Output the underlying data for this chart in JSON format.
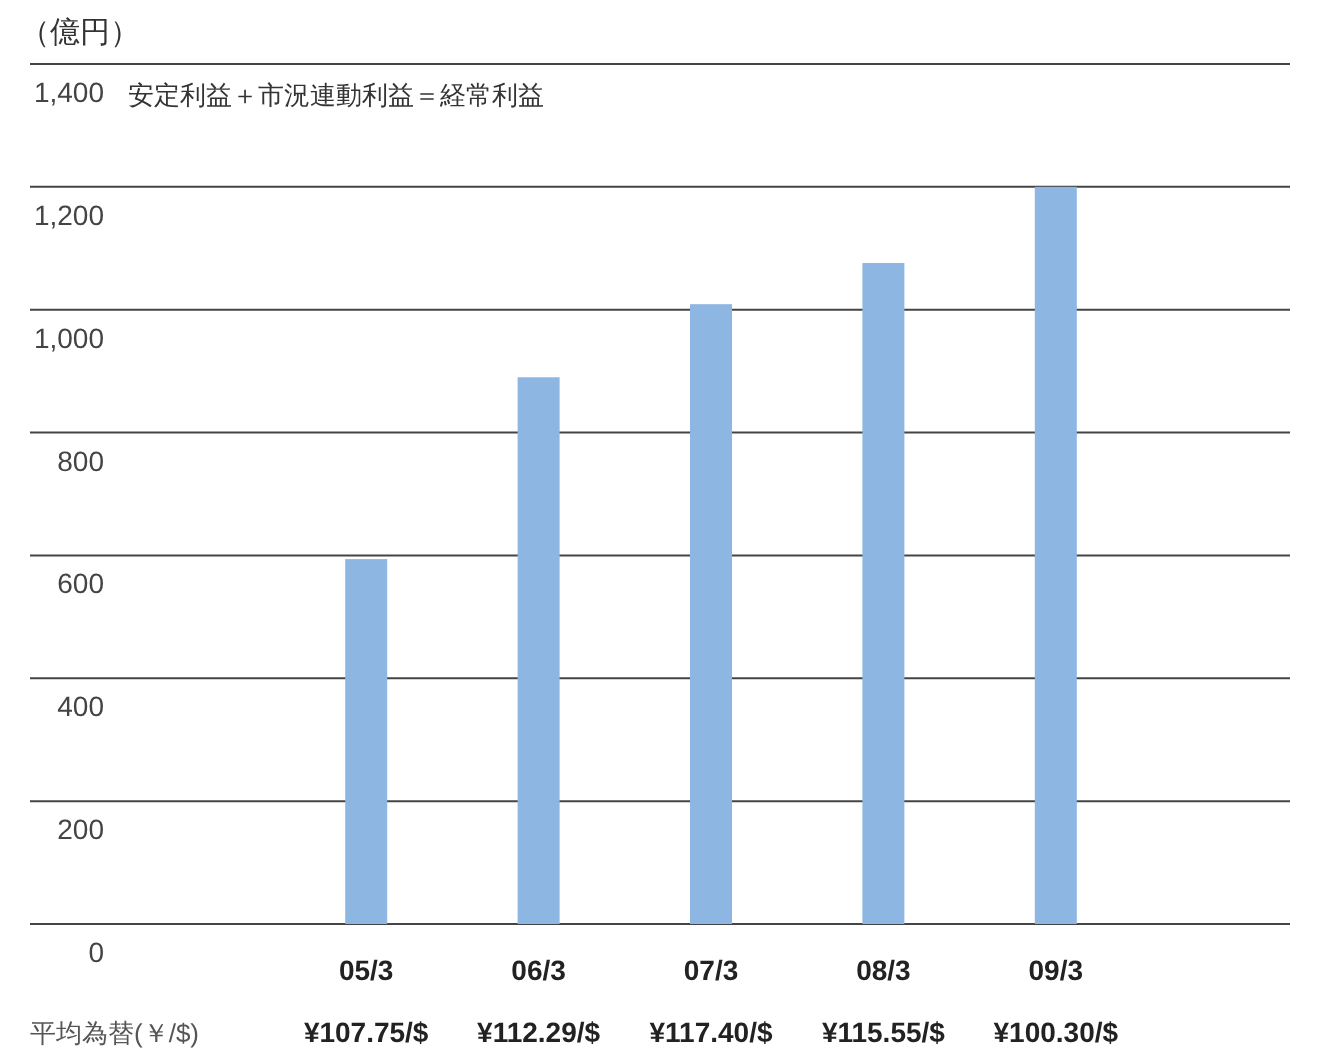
{
  "chart_data": {
    "type": "bar",
    "title": "安定利益＋市況連動利益＝経常利益",
    "ylabel": "（億円）",
    "categories": [
      "05/3",
      "06/3",
      "07/3",
      "08/3",
      "09/3"
    ],
    "values": [
      594,
      890,
      1009,
      1076,
      1200
    ],
    "color": "#8db6e2",
    "ylim": [
      0,
      1400
    ],
    "yticks": [
      0,
      200,
      400,
      600,
      800,
      {
        "value": 1000,
        "label": "1,000"
      },
      {
        "value": 1200,
        "label": "1,200"
      },
      {
        "value": 1400,
        "label": "1,400"
      }
    ],
    "grid": "y",
    "annotations": [
      "平均為替(￥/$)",
      "¥107.75/$",
      "¥112.29/$",
      "¥117.40/$",
      "¥115.55/$",
      "¥100.30/$"
    ]
  }
}
